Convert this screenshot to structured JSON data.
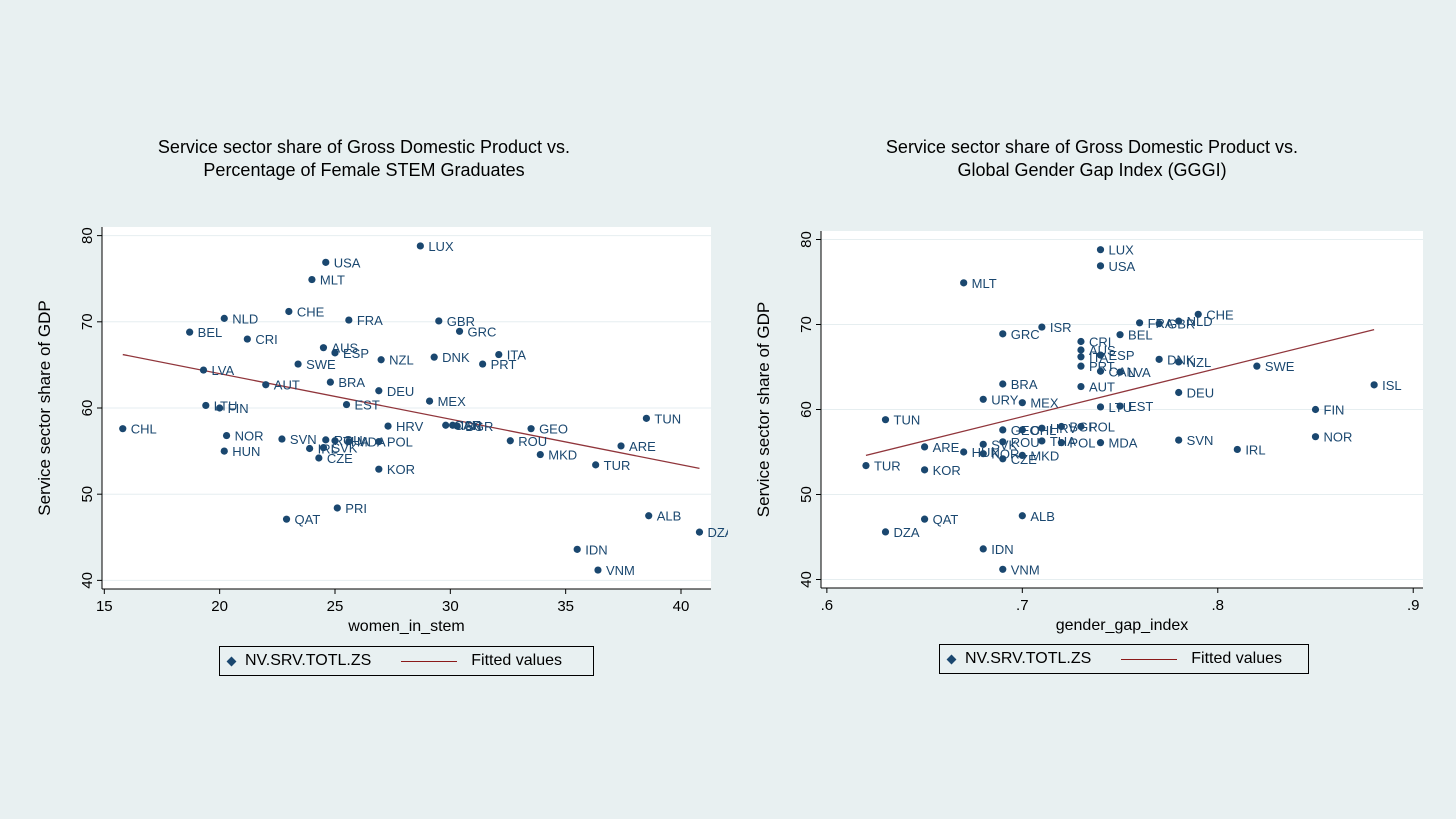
{
  "colors": {
    "marker": "#1a476f",
    "fit": "#90353b",
    "label": "#1a476f",
    "plot_bg": "#ffffff",
    "page_bg": "#e8f0f1"
  },
  "legend": {
    "marker_label": "NV.SRV.TOTL.ZS",
    "fit_label": "Fitted values"
  },
  "chart_data": [
    {
      "type": "scatter",
      "title_line1": "Service sector share of Gross Domestic Product vs.",
      "title_line2": "Percentage of Female STEM Graduates",
      "xlabel": "women_in_stem",
      "ylabel": "Service sector share of GDP",
      "xlim": [
        14.9,
        41.3
      ],
      "ylim": [
        39,
        81
      ],
      "xticks": [
        15,
        20,
        25,
        30,
        35,
        40
      ],
      "xtick_labels": [
        "15",
        "20",
        "25",
        "30",
        "35",
        "40"
      ],
      "yticks": [
        40,
        50,
        60,
        70,
        80
      ],
      "ytick_labels": [
        "40",
        "50",
        "60",
        "70",
        "80"
      ],
      "fit": {
        "x": [
          15.8,
          40.8
        ],
        "y": [
          66.2,
          53.0
        ]
      },
      "points": [
        {
          "label": "LUX",
          "x": 28.7,
          "y": 78.8
        },
        {
          "label": "USA",
          "x": 24.6,
          "y": 76.9
        },
        {
          "label": "MLT",
          "x": 24.0,
          "y": 74.9
        },
        {
          "label": "CHE",
          "x": 23.0,
          "y": 71.2
        },
        {
          "label": "NLD",
          "x": 20.2,
          "y": 70.4
        },
        {
          "label": "FRA",
          "x": 25.6,
          "y": 70.2
        },
        {
          "label": "GBR",
          "x": 29.5,
          "y": 70.1
        },
        {
          "label": "GRC",
          "x": 30.4,
          "y": 68.9
        },
        {
          "label": "BEL",
          "x": 18.7,
          "y": 68.8
        },
        {
          "label": "CRI",
          "x": 21.2,
          "y": 68.0
        },
        {
          "label": "AUS",
          "x": 24.5,
          "y": 67.0
        },
        {
          "label": "ESP",
          "x": 25.0,
          "y": 66.4
        },
        {
          "label": "ITA",
          "x": 32.1,
          "y": 66.2
        },
        {
          "label": "DNK",
          "x": 29.3,
          "y": 65.9
        },
        {
          "label": "NZL",
          "x": 27.0,
          "y": 65.6
        },
        {
          "label": "SWE",
          "x": 23.4,
          "y": 65.1
        },
        {
          "label": "PRT",
          "x": 31.4,
          "y": 65.1
        },
        {
          "label": "LVA",
          "x": 19.3,
          "y": 64.4
        },
        {
          "label": "BRA",
          "x": 24.8,
          "y": 63.0
        },
        {
          "label": "AUT",
          "x": 22.0,
          "y": 62.7
        },
        {
          "label": "DEU",
          "x": 26.9,
          "y": 62.0
        },
        {
          "label": "MEX",
          "x": 29.1,
          "y": 60.8
        },
        {
          "label": "EST",
          "x": 25.5,
          "y": 60.4
        },
        {
          "label": "LTU",
          "x": 19.4,
          "y": 60.3
        },
        {
          "label": "FIN",
          "x": 20.0,
          "y": 60.0
        },
        {
          "label": "TUN",
          "x": 38.5,
          "y": 58.8
        },
        {
          "label": "CHL",
          "x": 15.8,
          "y": 57.6
        },
        {
          "label": "HRV",
          "x": 27.3,
          "y": 57.9
        },
        {
          "label": "CAN",
          "x": 29.8,
          "y": 58.0
        },
        {
          "label": "ISR",
          "x": 30.1,
          "y": 58.0
        },
        {
          "label": "BGR",
          "x": 30.3,
          "y": 57.9
        },
        {
          "label": "GEO",
          "x": 33.5,
          "y": 57.6
        },
        {
          "label": "NOR",
          "x": 20.3,
          "y": 56.8
        },
        {
          "label": "SVN",
          "x": 22.7,
          "y": 56.4
        },
        {
          "label": "ROU",
          "x": 24.6,
          "y": 56.3
        },
        {
          "label": "THA",
          "x": 25.0,
          "y": 56.2
        },
        {
          "label": "MDA",
          "x": 25.6,
          "y": 56.1
        },
        {
          "label": "POL",
          "x": 26.9,
          "y": 56.1
        },
        {
          "label": "ROU",
          "x": 32.6,
          "y": 56.2
        },
        {
          "label": "ARE",
          "x": 37.4,
          "y": 55.6
        },
        {
          "label": "IRL",
          "x": 23.9,
          "y": 55.3
        },
        {
          "label": "SVK",
          "x": 24.5,
          "y": 55.4
        },
        {
          "label": "HUN",
          "x": 20.2,
          "y": 55.0
        },
        {
          "label": "MKD",
          "x": 33.9,
          "y": 54.6
        },
        {
          "label": "CZE",
          "x": 24.3,
          "y": 54.2
        },
        {
          "label": "TUR",
          "x": 36.3,
          "y": 53.4
        },
        {
          "label": "KOR",
          "x": 26.9,
          "y": 52.9
        },
        {
          "label": "PRI",
          "x": 25.1,
          "y": 48.4
        },
        {
          "label": "ALB",
          "x": 38.6,
          "y": 47.5
        },
        {
          "label": "QAT",
          "x": 22.9,
          "y": 47.1
        },
        {
          "label": "DZA",
          "x": 40.8,
          "y": 45.6
        },
        {
          "label": "IDN",
          "x": 35.5,
          "y": 43.6
        },
        {
          "label": "VNM",
          "x": 36.4,
          "y": 41.2
        }
      ]
    },
    {
      "type": "scatter",
      "title_line1": "Service sector share of Gross Domestic Product vs.",
      "title_line2": "Global Gender Gap Index (GGGI)",
      "xlabel": "gender_gap_index",
      "ylabel": "Service sector share of GDP",
      "xlim": [
        0.597,
        0.905
      ],
      "ylim": [
        39,
        81
      ],
      "xticks": [
        0.6,
        0.7,
        0.8,
        0.9
      ],
      "xtick_labels": [
        ".6",
        ".7",
        ".8",
        ".9"
      ],
      "yticks": [
        40,
        50,
        60,
        70,
        80
      ],
      "ytick_labels": [
        "40",
        "50",
        "60",
        "70",
        "80"
      ],
      "fit": {
        "x": [
          0.62,
          0.88
        ],
        "y": [
          54.6,
          69.4
        ]
      },
      "points": [
        {
          "label": "LUX",
          "x": 0.74,
          "y": 78.8
        },
        {
          "label": "USA",
          "x": 0.74,
          "y": 76.9
        },
        {
          "label": "MLT",
          "x": 0.67,
          "y": 74.9
        },
        {
          "label": "CHE",
          "x": 0.79,
          "y": 71.2
        },
        {
          "label": "NLD",
          "x": 0.78,
          "y": 70.4
        },
        {
          "label": "FRA",
          "x": 0.76,
          "y": 70.2
        },
        {
          "label": "GBR",
          "x": 0.77,
          "y": 70.1
        },
        {
          "label": "ISR",
          "x": 0.71,
          "y": 69.7
        },
        {
          "label": "GRC",
          "x": 0.69,
          "y": 68.9
        },
        {
          "label": "BEL",
          "x": 0.75,
          "y": 68.8
        },
        {
          "label": "CRI",
          "x": 0.73,
          "y": 68.0
        },
        {
          "label": "AUS",
          "x": 0.73,
          "y": 67.0
        },
        {
          "label": "ESP",
          "x": 0.74,
          "y": 66.4
        },
        {
          "label": "ITA",
          "x": 0.73,
          "y": 66.2
        },
        {
          "label": "DNK",
          "x": 0.77,
          "y": 65.9
        },
        {
          "label": "NZL",
          "x": 0.78,
          "y": 65.6
        },
        {
          "label": "PRT",
          "x": 0.73,
          "y": 65.1
        },
        {
          "label": "SWE",
          "x": 0.82,
          "y": 65.1
        },
        {
          "label": "CAN",
          "x": 0.74,
          "y": 64.5
        },
        {
          "label": "LVA",
          "x": 0.75,
          "y": 64.4
        },
        {
          "label": "BRA",
          "x": 0.69,
          "y": 63.0
        },
        {
          "label": "ISL",
          "x": 0.88,
          "y": 62.9
        },
        {
          "label": "AUT",
          "x": 0.73,
          "y": 62.7
        },
        {
          "label": "DEU",
          "x": 0.78,
          "y": 62.0
        },
        {
          "label": "URY",
          "x": 0.68,
          "y": 61.2
        },
        {
          "label": "MEX",
          "x": 0.7,
          "y": 60.8
        },
        {
          "label": "LTU",
          "x": 0.74,
          "y": 60.3
        },
        {
          "label": "EST",
          "x": 0.75,
          "y": 60.4
        },
        {
          "label": "FIN",
          "x": 0.85,
          "y": 60.0
        },
        {
          "label": "TUN",
          "x": 0.63,
          "y": 58.8
        },
        {
          "label": "GEO",
          "x": 0.69,
          "y": 57.6
        },
        {
          "label": "CHL",
          "x": 0.7,
          "y": 57.6
        },
        {
          "label": "HRV",
          "x": 0.71,
          "y": 57.8
        },
        {
          "label": "BGR",
          "x": 0.72,
          "y": 58.0
        },
        {
          "label": "POL",
          "x": 0.73,
          "y": 58.0
        },
        {
          "label": "SVN",
          "x": 0.78,
          "y": 56.4
        },
        {
          "label": "NOR",
          "x": 0.85,
          "y": 56.8
        },
        {
          "label": "ROU",
          "x": 0.69,
          "y": 56.2
        },
        {
          "label": "THA",
          "x": 0.71,
          "y": 56.3
        },
        {
          "label": "POL",
          "x": 0.72,
          "y": 56.1
        },
        {
          "label": "MDA",
          "x": 0.74,
          "y": 56.1
        },
        {
          "label": "ARE",
          "x": 0.65,
          "y": 55.6
        },
        {
          "label": "SVK",
          "x": 0.68,
          "y": 55.9
        },
        {
          "label": "IRL",
          "x": 0.81,
          "y": 55.3
        },
        {
          "label": "HUN",
          "x": 0.67,
          "y": 55.0
        },
        {
          "label": "KOR",
          "x": 0.68,
          "y": 54.8
        },
        {
          "label": "MKD",
          "x": 0.7,
          "y": 54.6
        },
        {
          "label": "CZE",
          "x": 0.69,
          "y": 54.2
        },
        {
          "label": "TUR",
          "x": 0.62,
          "y": 53.4
        },
        {
          "label": "KOR",
          "x": 0.65,
          "y": 52.9
        },
        {
          "label": "ALB",
          "x": 0.7,
          "y": 47.5
        },
        {
          "label": "QAT",
          "x": 0.65,
          "y": 47.1
        },
        {
          "label": "DZA",
          "x": 0.63,
          "y": 45.6
        },
        {
          "label": "IDN",
          "x": 0.68,
          "y": 43.6
        },
        {
          "label": "VNM",
          "x": 0.69,
          "y": 41.2
        }
      ]
    }
  ]
}
